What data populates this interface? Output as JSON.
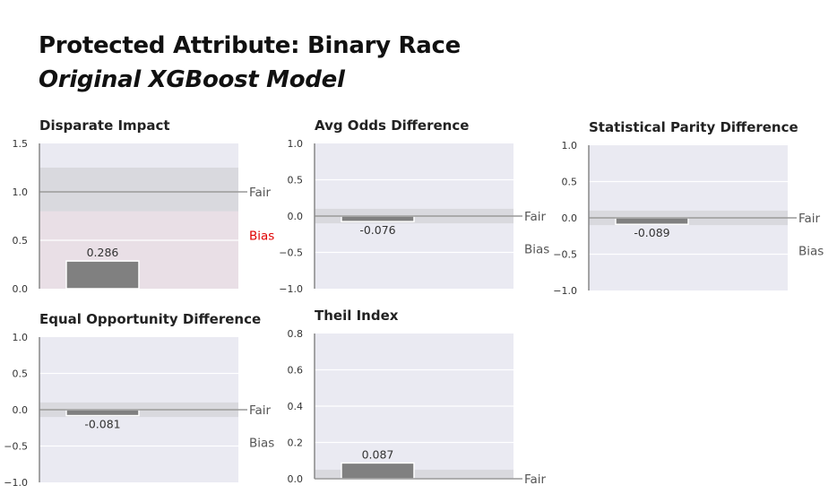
{
  "header": {
    "title": "Protected Attribute: Binary Race",
    "subtitle": "Original XGBoost Model"
  },
  "colors": {
    "panel_bg": "#eaeaf2",
    "bias_region": "#e9dfe6",
    "fair_band": "#d8d8dc",
    "bar": "#808080",
    "bias_label_alert": "#e00000",
    "label_gray": "#555555"
  },
  "chart_data": [
    {
      "type": "bar",
      "title": "Disparate Impact",
      "values": [
        0.286
      ],
      "value_labels": [
        "0.286"
      ],
      "ylim": [
        0,
        1.5
      ],
      "yticks": [
        "0.0",
        "0.5",
        "1.0",
        "1.5"
      ],
      "yticks_values": [
        0,
        0.5,
        1.0,
        1.5
      ],
      "ideal": 1.0,
      "fair_range": [
        0.8,
        1.25
      ],
      "bias_region": [
        0,
        0.8
      ],
      "fair_label": "Fair",
      "bias_label": "Bias",
      "bias_label_alert": true,
      "fair_label_value": 1.0,
      "bias_label_value": 0.55
    },
    {
      "type": "bar",
      "title": "Avg Odds Difference",
      "values": [
        -0.076
      ],
      "value_labels": [
        "-0.076"
      ],
      "ylim": [
        -1.0,
        1.0
      ],
      "yticks": [
        "−1.0",
        "−0.5",
        "0.0",
        "0.5",
        "1.0"
      ],
      "yticks_values": [
        -1.0,
        -0.5,
        0,
        0.5,
        1.0
      ],
      "ideal": 0.0,
      "fair_range": [
        -0.1,
        0.1
      ],
      "fair_label": "Fair",
      "bias_label": "Bias",
      "bias_label_alert": false,
      "fair_label_value": 0.0,
      "bias_label_value": -0.45
    },
    {
      "type": "bar",
      "title": "Statistical Parity Difference",
      "values": [
        -0.089
      ],
      "value_labels": [
        "-0.089"
      ],
      "ylim": [
        -1.0,
        1.0
      ],
      "yticks": [
        "−1.0",
        "−0.5",
        "0.0",
        "0.5",
        "1.0"
      ],
      "yticks_values": [
        -1.0,
        -0.5,
        0,
        0.5,
        1.0
      ],
      "ideal": 0.0,
      "fair_range": [
        -0.1,
        0.1
      ],
      "fair_label": "Fair",
      "bias_label": "Bias",
      "bias_label_alert": false,
      "fair_label_value": 0.0,
      "bias_label_value": -0.45
    },
    {
      "type": "bar",
      "title": "Equal Opportunity Difference",
      "values": [
        -0.081
      ],
      "value_labels": [
        "-0.081"
      ],
      "ylim": [
        -1.0,
        1.0
      ],
      "yticks": [
        "−1.0",
        "−0.5",
        "0.0",
        "0.5",
        "1.0"
      ],
      "yticks_values": [
        -1.0,
        -0.5,
        0,
        0.5,
        1.0
      ],
      "ideal": 0.0,
      "fair_range": [
        -0.1,
        0.1
      ],
      "fair_label": "Fair",
      "bias_label": "Bias",
      "bias_label_alert": false,
      "fair_label_value": 0.0,
      "bias_label_value": -0.45
    },
    {
      "type": "bar",
      "title": "Theil Index",
      "values": [
        0.087
      ],
      "value_labels": [
        "0.087"
      ],
      "ylim": [
        0,
        0.8
      ],
      "yticks": [
        "0.0",
        "0.2",
        "0.4",
        "0.6",
        "0.8"
      ],
      "yticks_values": [
        0,
        0.2,
        0.4,
        0.6,
        0.8
      ],
      "ideal": 0.0,
      "fair_range": [
        0,
        0.05
      ],
      "fair_label": "Fair",
      "bias_label": "",
      "bias_label_alert": false,
      "fair_label_value": 0.0,
      "bias_label_value": null
    }
  ]
}
